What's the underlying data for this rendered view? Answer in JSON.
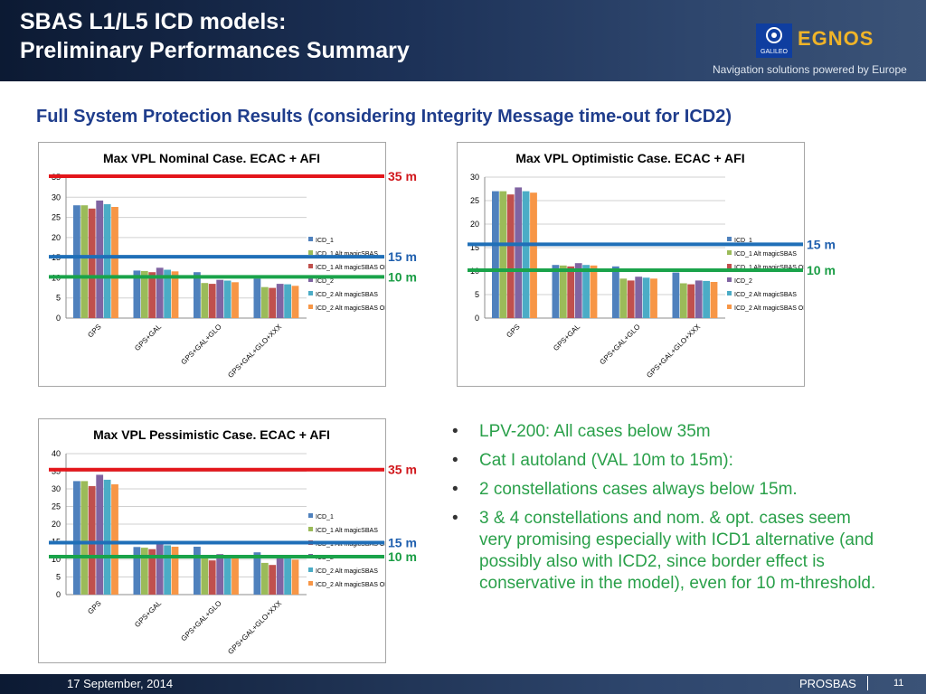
{
  "header": {
    "title_line1": "SBAS L1/L5 ICD models:",
    "title_line2": "Preliminary Performances Summary",
    "logo_galileo": "GALILEO",
    "logo_egnos": "EGNOS",
    "tagline": "Navigation solutions powered by Europe"
  },
  "subtitle": "Full System Protection Results (considering Integrity Message time-out for ICD2)",
  "colors": {
    "ICD_1": "#4f81bd",
    "ICD_1 Alt magicSBAS": "#9bbb59",
    "ICD_1 Alt magicSBAS ODTS": "#c0504d",
    "ICD_2": "#8064a2",
    "ICD_2 Alt magicSBAS": "#4bacc6",
    "ICD_2 Alt magicSBAS ODTS": "#f79646",
    "line_red": "#e3161b",
    "line_blue": "#1f6fb8",
    "line_green": "#1aa34a"
  },
  "chart_data": [
    {
      "type": "bar",
      "title": "Max VPL Nominal Case. ECAC + AFI",
      "categories": [
        "GPS",
        "GPS+GAL",
        "GPS+GAL+GLO",
        "GPS+GAL+GLO+XXX"
      ],
      "ylim": [
        0,
        35
      ],
      "yticks": [
        0,
        5,
        10,
        15,
        20,
        25,
        30,
        35
      ],
      "grid": true,
      "legend": "right",
      "series": [
        {
          "name": "ICD_1",
          "values": [
            28,
            11.8,
            11.4,
            9.8
          ]
        },
        {
          "name": "ICD_1 Alt magicSBAS",
          "values": [
            28,
            11.7,
            8.7,
            7.7
          ]
        },
        {
          "name": "ICD_1 Alt magicSBAS ODTS",
          "values": [
            27.2,
            11.4,
            8.5,
            7.5
          ]
        },
        {
          "name": "ICD_2",
          "values": [
            29.2,
            12.5,
            9.5,
            8.5
          ]
        },
        {
          "name": "ICD_2 Alt magicSBAS",
          "values": [
            28.3,
            12,
            9.3,
            8.4
          ]
        },
        {
          "name": "ICD_2 Alt magicSBAS ODTS",
          "values": [
            27.6,
            11.6,
            8.9,
            8
          ]
        }
      ],
      "annotations": [
        {
          "label": "35 m",
          "value": 35,
          "color": "red"
        },
        {
          "label": "15 m",
          "value": 15,
          "color": "blue"
        },
        {
          "label": "10 m",
          "value": 10,
          "color": "green"
        }
      ]
    },
    {
      "type": "bar",
      "title": "Max VPL Optimistic Case. ECAC + AFI",
      "categories": [
        "GPS",
        "GPS+GAL",
        "GPS+GAL+GLO",
        "GPS+GAL+GLO+XXX"
      ],
      "ylim": [
        0,
        30
      ],
      "yticks": [
        0,
        5,
        10,
        15,
        20,
        25,
        30
      ],
      "grid": true,
      "legend": "right",
      "series": [
        {
          "name": "ICD_1",
          "values": [
            27,
            11.3,
            11,
            9.7
          ]
        },
        {
          "name": "ICD_1 Alt magicSBAS",
          "values": [
            27,
            11.2,
            8.4,
            7.4
          ]
        },
        {
          "name": "ICD_1 Alt magicSBAS ODTS",
          "values": [
            26.3,
            11,
            8,
            7.2
          ]
        },
        {
          "name": "ICD_2",
          "values": [
            27.8,
            11.7,
            8.8,
            8
          ]
        },
        {
          "name": "ICD_2 Alt magicSBAS",
          "values": [
            27,
            11.3,
            8.6,
            7.9
          ]
        },
        {
          "name": "ICD_2 Alt magicSBAS ODTS",
          "values": [
            26.7,
            11.2,
            8.4,
            7.7
          ]
        }
      ],
      "annotations": [
        {
          "label": "15 m",
          "value": 15.5,
          "color": "blue"
        },
        {
          "label": "10 m",
          "value": 10,
          "color": "green"
        }
      ]
    },
    {
      "type": "bar",
      "title": "Max VPL Pessimistic Case. ECAC + AFI",
      "categories": [
        "GPS",
        "GPS+GAL",
        "GPS+GAL+GLO",
        "GPS+GAL+GLO+XXX"
      ],
      "ylim": [
        0,
        40
      ],
      "yticks": [
        0,
        5,
        10,
        15,
        20,
        25,
        30,
        35,
        40
      ],
      "grid": true,
      "legend": "right",
      "series": [
        {
          "name": "ICD_1",
          "values": [
            32.2,
            13.5,
            13.6,
            12
          ]
        },
        {
          "name": "ICD_1 Alt magicSBAS",
          "values": [
            32.2,
            13.3,
            10.4,
            9
          ]
        },
        {
          "name": "ICD_1 Alt magicSBAS ODTS",
          "values": [
            30.8,
            12.9,
            9.7,
            8.4
          ]
        },
        {
          "name": "ICD_2",
          "values": [
            34,
            14.5,
            11.5,
            10.5
          ]
        },
        {
          "name": "ICD_2 Alt magicSBAS",
          "values": [
            32.6,
            14,
            11.2,
            10.3
          ]
        },
        {
          "name": "ICD_2 Alt magicSBAS ODTS",
          "values": [
            31.3,
            13.6,
            10.8,
            9.9
          ]
        }
      ],
      "annotations": [
        {
          "label": "35 m",
          "value": 35.2,
          "color": "red"
        },
        {
          "label": "15 m",
          "value": 14.5,
          "color": "blue"
        },
        {
          "label": "10 m",
          "value": 10.5,
          "color": "green"
        }
      ]
    }
  ],
  "bullets": [
    "LPV-200: All cases below 35m",
    "Cat I autoland (VAL 10m to 15m):",
    "2 constellations cases always below 15m.",
    "3 & 4 constellations and nom. & opt. cases seem very promising especially with ICD1 alternative (and possibly also with ICD2, since border effect is conservative in the model), even for 10 m-threshold."
  ],
  "footer": {
    "date": "17 September, 2014",
    "project": "PROSBAS",
    "page": "11"
  }
}
